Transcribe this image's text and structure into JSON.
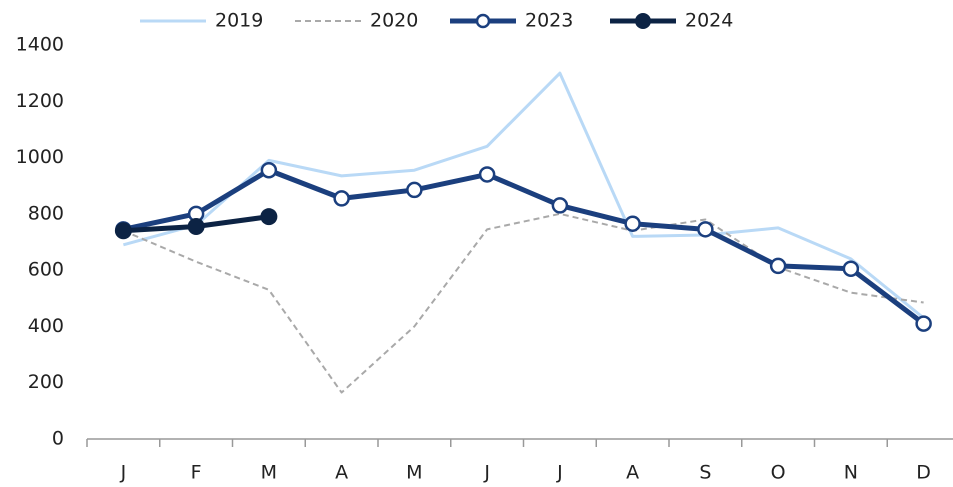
{
  "chart_data": {
    "type": "line",
    "categories": [
      "J",
      "F",
      "M",
      "A",
      "M",
      "J",
      "J",
      "A",
      "S",
      "O",
      "N",
      "D"
    ],
    "series": [
      {
        "name": "2019",
        "color": "#b9d9f6",
        "dash": false,
        "marker": "none",
        "width": 3,
        "values": [
          690,
          760,
          990,
          935,
          955,
          1040,
          1300,
          720,
          725,
          750,
          640,
          430
        ]
      },
      {
        "name": "2020",
        "color": "#a9a9a9",
        "dash": true,
        "marker": "none",
        "width": 2,
        "values": [
          740,
          630,
          530,
          165,
          400,
          745,
          800,
          740,
          780,
          610,
          520,
          485
        ]
      },
      {
        "name": "2023",
        "color": "#1b3f7e",
        "dash": false,
        "marker": "open",
        "width": 5,
        "values": [
          745,
          800,
          955,
          855,
          885,
          940,
          830,
          765,
          745,
          615,
          605,
          410
        ]
      },
      {
        "name": "2024",
        "color": "#0c2344",
        "dash": false,
        "marker": "filled",
        "width": 5,
        "values": [
          740,
          755,
          790,
          null,
          null,
          null,
          null,
          null,
          null,
          null,
          null,
          null
        ]
      }
    ],
    "ylim": [
      0,
      1400
    ],
    "yticks": [
      0,
      200,
      400,
      600,
      800,
      1000,
      1200,
      1400
    ],
    "grid": false,
    "legend": "top"
  }
}
